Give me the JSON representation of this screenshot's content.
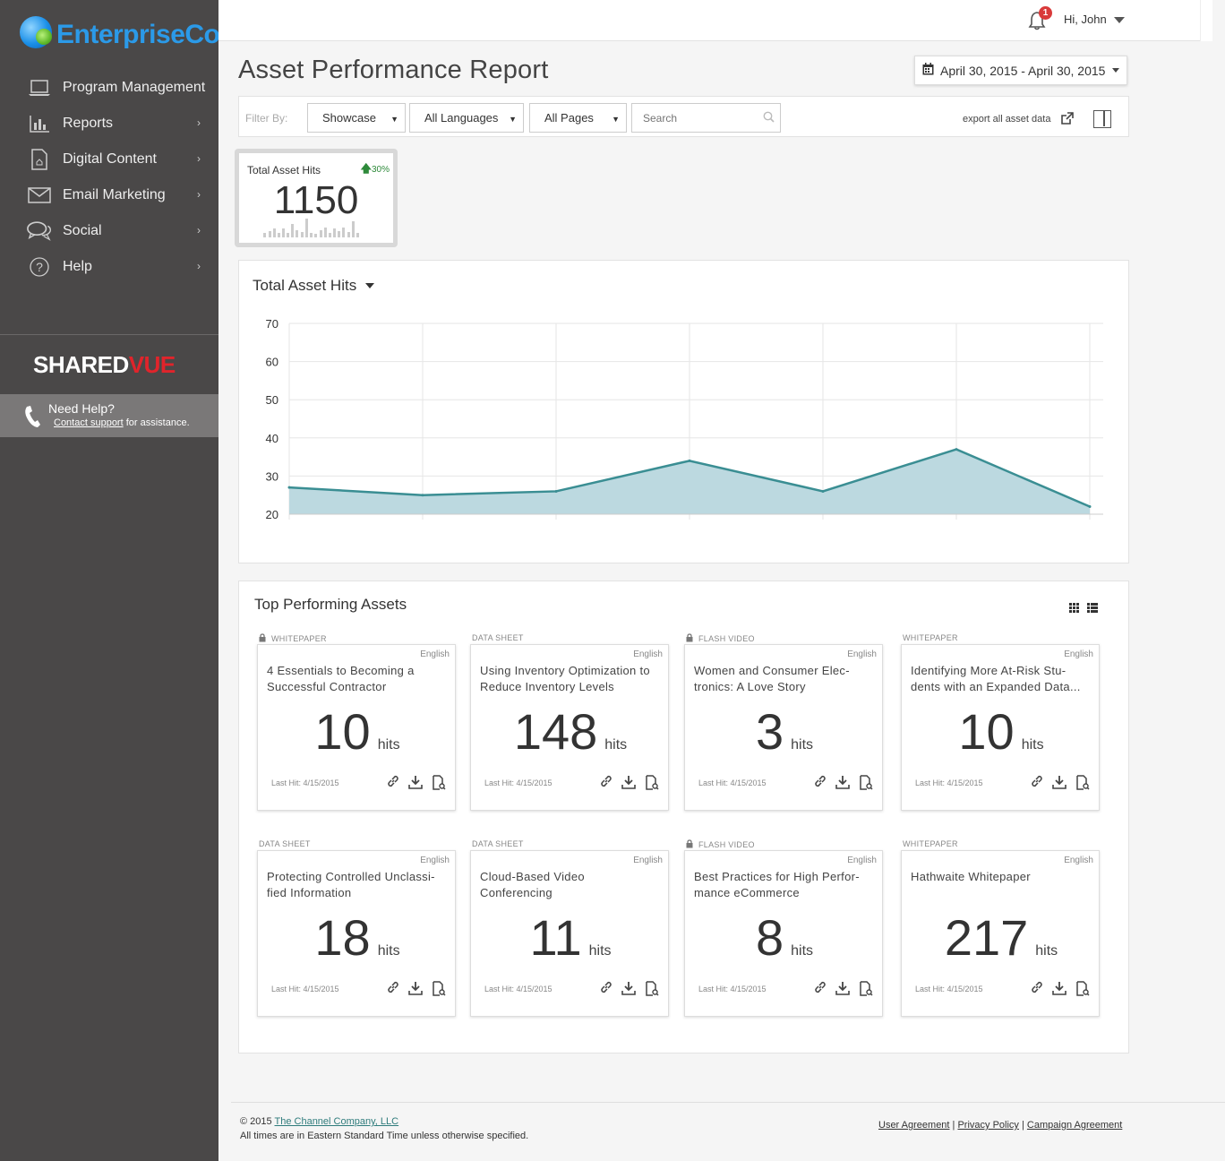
{
  "brand": {
    "name": "EnterpriseCo"
  },
  "sidebar": {
    "items": [
      {
        "label": "Program Management",
        "icon": "laptop-icon",
        "chevron": ""
      },
      {
        "label": "Reports",
        "icon": "bar-chart-icon",
        "chevron": "›"
      },
      {
        "label": "Digital Content",
        "icon": "document-icon",
        "chevron": "›"
      },
      {
        "label": "Email Marketing",
        "icon": "envelope-icon",
        "chevron": "›"
      },
      {
        "label": "Social",
        "icon": "chat-bubbles-icon",
        "chevron": "›"
      },
      {
        "label": "Help",
        "icon": "question-circle-icon",
        "chevron": "›"
      }
    ],
    "sharedvue_prefix": "SHARED",
    "sharedvue_suffix": "VUE",
    "help_title": "Need Help?",
    "help_link": "Contact support",
    "help_suffix": " for assistance."
  },
  "topbar": {
    "notification_count": "1",
    "greeting": "Hi, John"
  },
  "header": {
    "title": "Asset Performance Report",
    "date_range": "April 30, 2015 - April 30, 2015"
  },
  "filters": {
    "label": "Filter By:",
    "showcase": "Showcase",
    "languages": "All Languages",
    "pages": "All Pages",
    "search_placeholder": "Search",
    "export_label": "export all asset data"
  },
  "kpi": {
    "title": "Total Asset Hits",
    "change": "30%",
    "value": "1150"
  },
  "chart_data": {
    "type": "area",
    "title": "Total Asset Hits",
    "x": [
      1,
      2,
      3,
      4,
      5,
      6,
      7
    ],
    "values": [
      27,
      25,
      26,
      34,
      26,
      37,
      22
    ],
    "yticks": [
      20,
      30,
      40,
      50,
      60,
      70
    ],
    "ylim": [
      20,
      70
    ],
    "grid": true,
    "color": "#3a8e93",
    "fill": "#bcd9e0"
  },
  "assets": {
    "title": "Top Performing Assets",
    "hits_label": "hits",
    "items": [
      {
        "type": "WHITEPAPER",
        "locked": true,
        "lang": "English",
        "name": "4 Essentials to Becoming a Successful Contractor",
        "hits": "10",
        "last": "Last Hit: 4/15/2015"
      },
      {
        "type": "DATA SHEET",
        "locked": false,
        "lang": "English",
        "name": "Using Inventory Optimization to Reduce Inventory Levels",
        "hits": "148",
        "last": "Last Hit: 4/15/2015"
      },
      {
        "type": "FLASH VIDEO",
        "locked": true,
        "lang": "English",
        "name": "Women and Consumer Elec-tronics: A Love Story",
        "hits": "3",
        "last": "Last Hit: 4/15/2015"
      },
      {
        "type": "WHITEPAPER",
        "locked": false,
        "lang": "English",
        "name": "Identifying More At-Risk Stu-dents with an Expanded Data...",
        "hits": "10",
        "last": "Last Hit: 4/15/2015"
      },
      {
        "type": "DATA SHEET",
        "locked": false,
        "lang": "English",
        "name": "Protecting Controlled Unclassi-fied Information",
        "hits": "18",
        "last": "Last Hit: 4/15/2015"
      },
      {
        "type": "DATA SHEET",
        "locked": false,
        "lang": "English",
        "name": "Cloud-Based Video Conferencing",
        "hits": "11",
        "last": "Last Hit: 4/15/2015"
      },
      {
        "type": "FLASH VIDEO",
        "locked": true,
        "lang": "English",
        "name": "Best Practices for High Perfor-mance eCommerce",
        "hits": "8",
        "last": "Last Hit: 4/15/2015"
      },
      {
        "type": "WHITEPAPER",
        "locked": false,
        "lang": "English",
        "name": "Hathwaite Whitepaper",
        "hits": "217",
        "last": "Last Hit: 4/15/2015"
      }
    ]
  },
  "footer": {
    "copyright": "© 2015 ",
    "company": "The Channel Company, LLC",
    "timezone": "All times are in Eastern Standard Time unless otherwise specified.",
    "links": [
      "User Agreement",
      "Privacy Policy",
      "Campaign Agreement"
    ],
    "separator": " | "
  }
}
